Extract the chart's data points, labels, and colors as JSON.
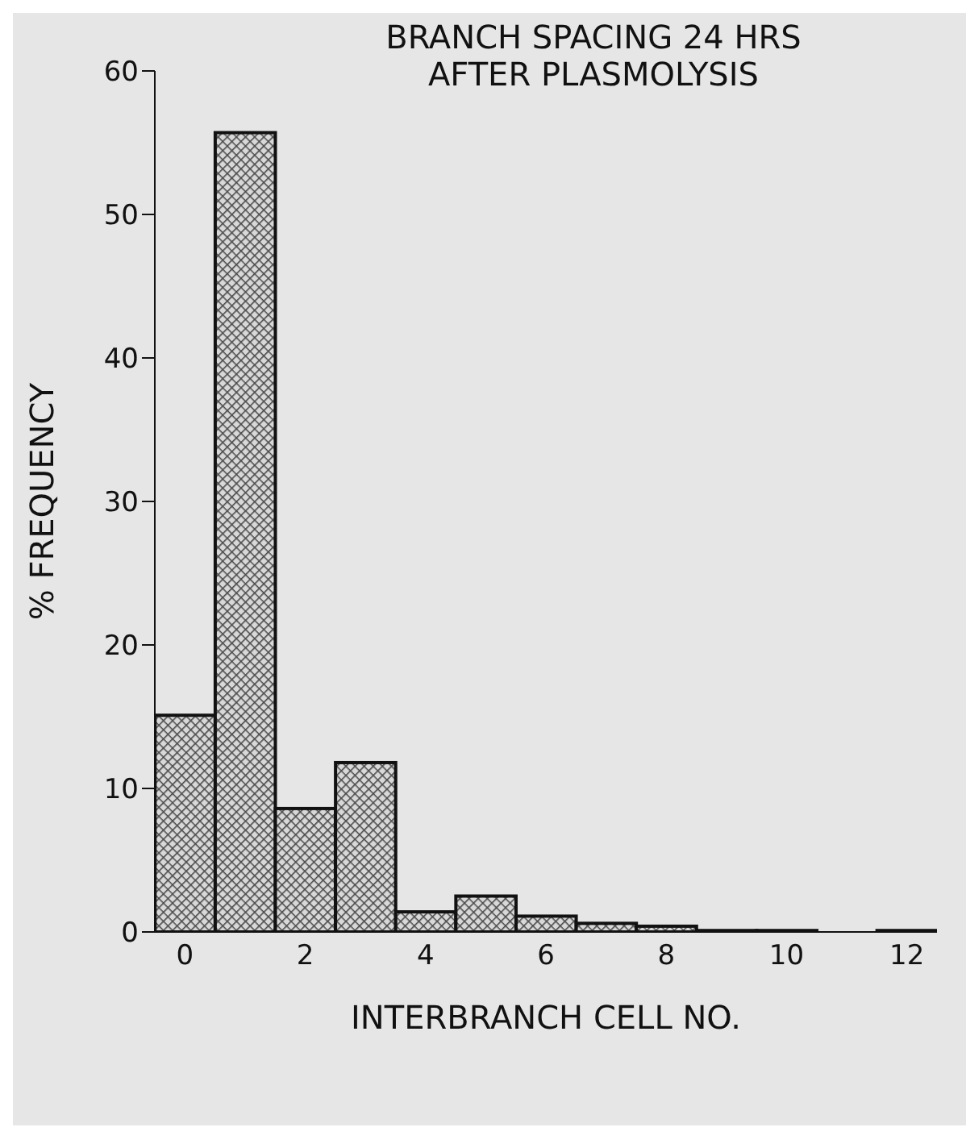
{
  "chart_data": {
    "type": "histogram",
    "title": "BRANCH SPACING 24 HRS AFTER PLASMOLYSIS",
    "xlabel": "INTERBRANCH CELL NO.",
    "ylabel": "% FREQUENCY",
    "bins": [
      -0.5,
      0.5,
      1.5,
      2.5,
      3.5,
      4.5,
      5.5,
      6.5,
      7.5,
      8.5,
      9.5,
      10.5,
      11.5,
      12.5
    ],
    "values": [
      15.1,
      55.7,
      8.6,
      11.8,
      1.4,
      2.5,
      1.1,
      0.6,
      0.4,
      0.1,
      0.1,
      0,
      0.1
    ],
    "color": "#111111",
    "xlim": [
      -0.5,
      12.5
    ],
    "xticks": [
      0,
      2,
      4,
      6,
      8,
      10,
      12
    ],
    "ylim": [
      0,
      60
    ],
    "yticks": [
      0,
      10,
      20,
      30,
      40,
      50,
      60
    ]
  }
}
